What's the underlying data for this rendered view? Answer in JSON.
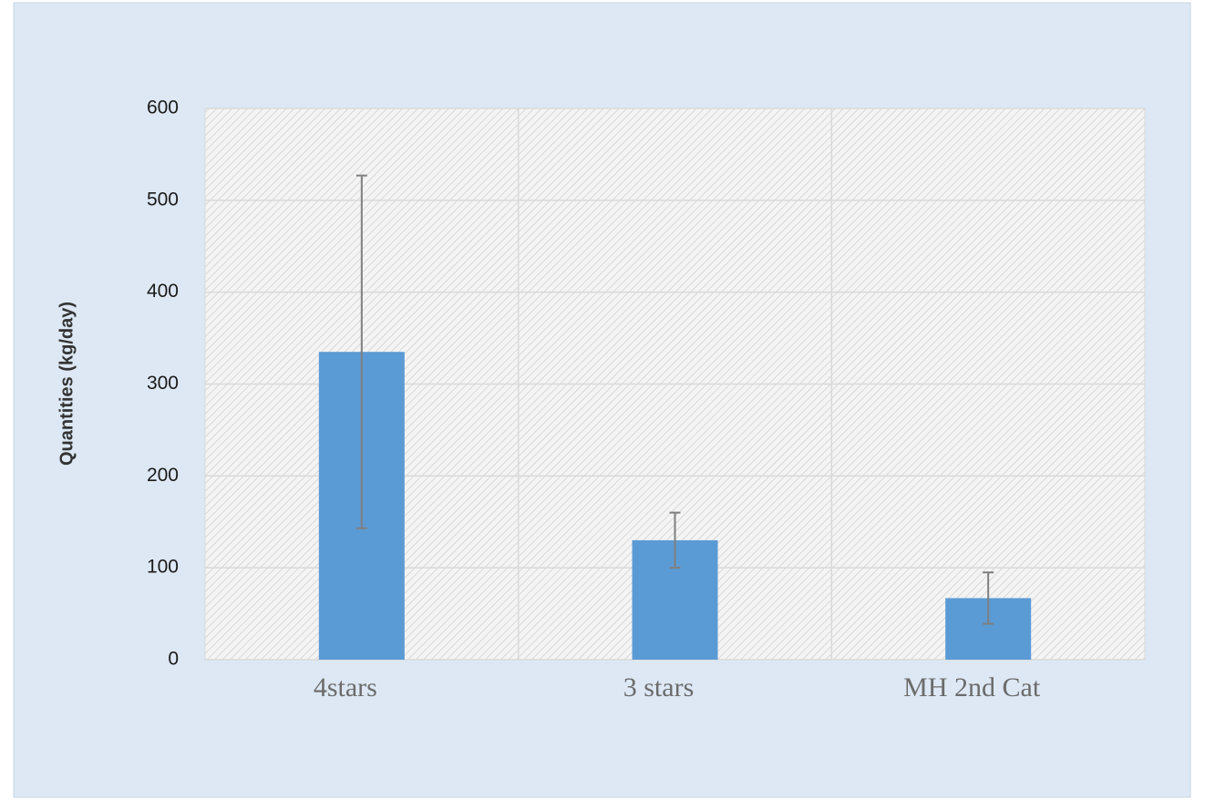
{
  "chart_data": {
    "type": "bar",
    "y_label": "Quantities (kg/day)",
    "categories": [
      "4stars",
      "3 stars",
      "MH 2nd Cat"
    ],
    "values": [
      335,
      130,
      67
    ],
    "errors": [
      192,
      30,
      28
    ],
    "color": "#5b9bd5",
    "error_color": "#7f7f7f",
    "ylim": [
      0,
      600
    ],
    "yticks": [
      0,
      100,
      200,
      300,
      400,
      500,
      600
    ],
    "grid": true
  }
}
